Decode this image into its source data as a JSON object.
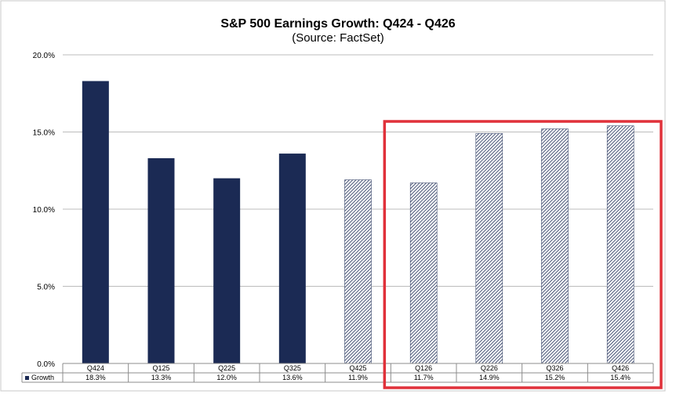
{
  "chart_data": {
    "type": "bar",
    "title": "S&P 500 Earnings Growth: Q424 - Q426",
    "subtitle": "(Source: FactSet)",
    "categories": [
      "Q424",
      "Q125",
      "Q225",
      "Q325",
      "Q425",
      "Q126",
      "Q226",
      "Q326",
      "Q426"
    ],
    "series": [
      {
        "name": "Growth",
        "values": [
          18.3,
          13.3,
          12.0,
          13.6,
          11.9,
          11.7,
          14.9,
          15.2,
          15.4
        ],
        "value_labels": [
          "18.3%",
          "13.3%",
          "12.0%",
          "13.6%",
          "11.9%",
          "11.7%",
          "14.9%",
          "15.2%",
          "15.4%"
        ],
        "actual": [
          true,
          true,
          true,
          true,
          false,
          false,
          false,
          false,
          false
        ]
      }
    ],
    "yticks": [
      0,
      5,
      10,
      15,
      20
    ],
    "ytick_labels": [
      "0.0%",
      "5.0%",
      "10.0%",
      "15.0%",
      "20.0%"
    ],
    "ylim": [
      0,
      20
    ],
    "xlabel": "",
    "ylabel": "",
    "grid": true,
    "data_table": true,
    "highlight": {
      "from_category": "Q126",
      "to_category": "Q426",
      "color": "#e0313a"
    },
    "colors": {
      "bar": "#1b2a54",
      "hatch_line": "#1b2a54",
      "grid": "#a6a6a6"
    }
  }
}
